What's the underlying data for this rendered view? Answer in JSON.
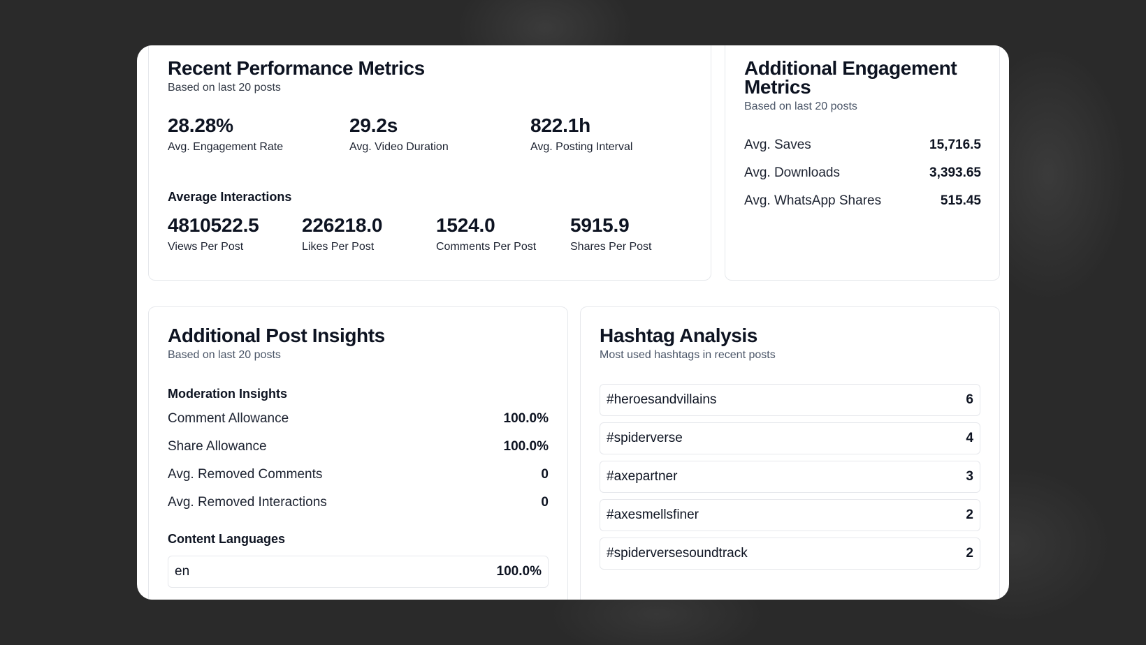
{
  "performance": {
    "title": "Recent Performance Metrics",
    "subtitle": "Based on last 20 posts",
    "stats": [
      {
        "value": "28.28%",
        "label": "Avg. Engagement Rate"
      },
      {
        "value": "29.2s",
        "label": "Avg. Video Duration"
      },
      {
        "value": "822.1h",
        "label": "Avg. Posting Interval"
      }
    ],
    "interactions_heading": "Average Interactions",
    "interactions": [
      {
        "value": "4810522.5",
        "label": "Views Per Post"
      },
      {
        "value": "226218.0",
        "label": "Likes Per Post"
      },
      {
        "value": "1524.0",
        "label": "Comments Per Post"
      },
      {
        "value": "5915.9",
        "label": "Shares Per Post"
      }
    ]
  },
  "engagement": {
    "title_line1": "Additional Engagement",
    "title_line2": "Metrics",
    "subtitle": "Based on last 20 posts",
    "rows": [
      {
        "label": "Avg. Saves",
        "value": "15,716.5"
      },
      {
        "label": "Avg. Downloads",
        "value": "3,393.65"
      },
      {
        "label": "Avg. WhatsApp Shares",
        "value": "515.45"
      }
    ]
  },
  "insights": {
    "title": "Additional Post Insights",
    "subtitle": "Based on last 20 posts",
    "moderation_heading": "Moderation Insights",
    "moderation": [
      {
        "label": "Comment Allowance",
        "value": "100.0%"
      },
      {
        "label": "Share Allowance",
        "value": "100.0%"
      },
      {
        "label": "Avg. Removed Comments",
        "value": "0"
      },
      {
        "label": "Avg. Removed Interactions",
        "value": "0"
      }
    ],
    "languages_heading": "Content Languages",
    "languages": [
      {
        "label": "en",
        "value": "100.0%"
      }
    ]
  },
  "hashtags": {
    "title": "Hashtag Analysis",
    "subtitle": "Most used hashtags in recent posts",
    "items": [
      {
        "tag": "#heroesandvillains",
        "count": "6"
      },
      {
        "tag": "#spiderverse",
        "count": "4"
      },
      {
        "tag": "#axepartner",
        "count": "3"
      },
      {
        "tag": "#axesmellsfiner",
        "count": "2"
      },
      {
        "tag": "#spiderversesoundtrack",
        "count": "2"
      }
    ]
  }
}
